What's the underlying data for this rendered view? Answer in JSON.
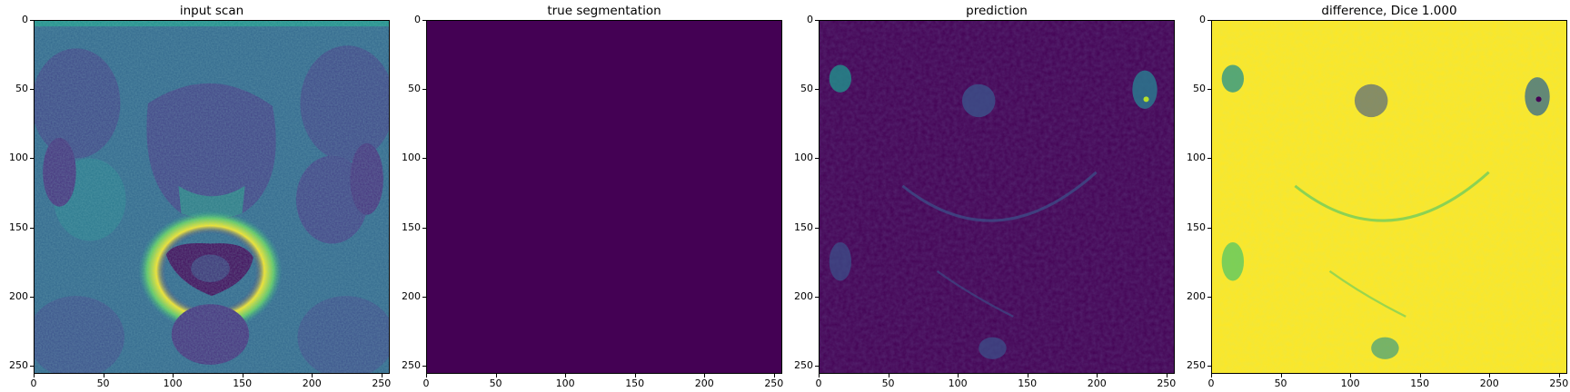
{
  "panels": [
    {
      "title": "input scan",
      "kind": "mri"
    },
    {
      "title": "true segmentation",
      "kind": "flat"
    },
    {
      "title": "prediction",
      "kind": "prediction"
    },
    {
      "title": "difference, Dice 1.000",
      "kind": "difference"
    }
  ],
  "axis": {
    "y_ticks": [
      "0",
      "50",
      "100",
      "150",
      "200",
      "250"
    ],
    "x_ticks": [
      "0",
      "50",
      "100",
      "150",
      "200",
      "250"
    ],
    "range": [
      0,
      256
    ]
  },
  "colors": {
    "viridis_dark": "#440154",
    "viridis_blue": "#3b528b",
    "viridis_teal": "#21918c",
    "viridis_green": "#5ec962",
    "viridis_yellow": "#fde725"
  }
}
